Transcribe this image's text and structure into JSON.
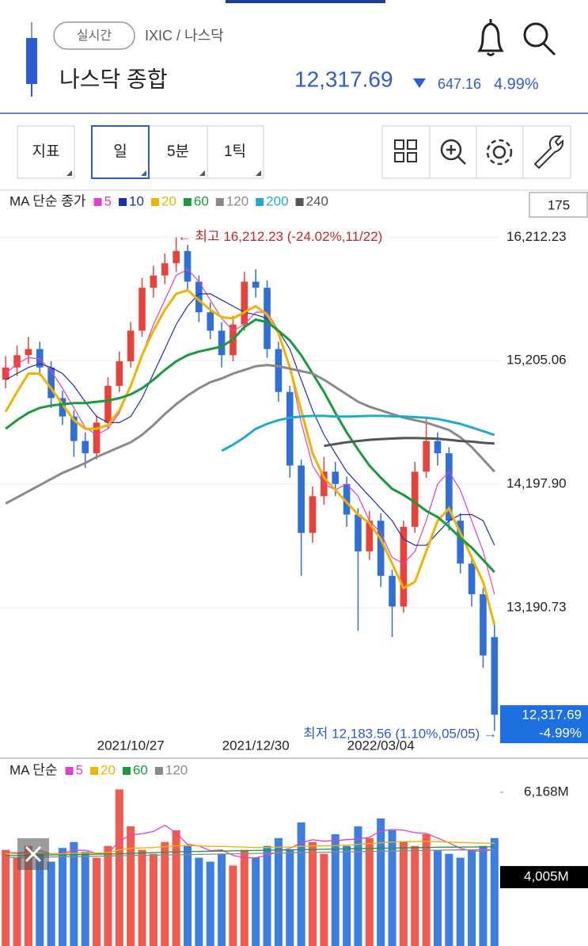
{
  "header": {
    "realtime": "실시간",
    "path": "IXIC / 나스닥",
    "title": "나스닥 종합",
    "price": "12,317.69",
    "change": "647.16",
    "change_pct": "4.99%"
  },
  "toolbar": {
    "buttons": [
      "지표",
      "일",
      "5분",
      "1틱"
    ],
    "count": "175"
  },
  "chart_data": [
    {
      "type": "candlestick",
      "legend_title": "MA 단순 종가",
      "categories": [
        null,
        null,
        null,
        null,
        null,
        null,
        null,
        null,
        null,
        null,
        null,
        "2021/10/27",
        null,
        null,
        null,
        null,
        null,
        null,
        null,
        null,
        null,
        null,
        "2021/12/30",
        null,
        null,
        null,
        null,
        null,
        null,
        null,
        null,
        null,
        null,
        "2022/03/04",
        null,
        null,
        null,
        null,
        null,
        null,
        null,
        null,
        null,
        null
      ],
      "open": [
        15050,
        15150,
        15250,
        15300,
        15150,
        14900,
        14750,
        14550,
        14450,
        14700,
        15000,
        15200,
        15450,
        15800,
        15900,
        16000,
        16100,
        15850,
        15600,
        15450,
        15250,
        15500,
        15850,
        15800,
        15300,
        14950,
        14350,
        13800,
        14100,
        14300,
        14200,
        13950,
        13650,
        13900,
        13450,
        13200,
        13850,
        14300,
        14550,
        14450,
        13900,
        13550,
        13300,
        12950
      ],
      "high": [
        15240,
        15330,
        15400,
        15360,
        15200,
        14960,
        14800,
        14620,
        14760,
        15070,
        15280,
        15520,
        15880,
        15980,
        16080,
        16212.23,
        16150,
        15900,
        15680,
        15520,
        15570,
        15930,
        15950,
        15860,
        15360,
        15000,
        14400,
        14180,
        14420,
        14380,
        14260,
        14000,
        13980,
        13960,
        13500,
        13900,
        14380,
        14750,
        14620,
        14500,
        13960,
        13620,
        13350,
        13050
      ],
      "low": [
        14980,
        15080,
        15180,
        15080,
        14820,
        14680,
        14420,
        14330,
        14400,
        14650,
        14950,
        15150,
        15400,
        15720,
        15830,
        15930,
        15780,
        15520,
        15380,
        15150,
        15200,
        15450,
        15720,
        15230,
        14870,
        14250,
        13450,
        13720,
        14030,
        14100,
        13850,
        13000,
        13580,
        13360,
        12950,
        13150,
        13800,
        14250,
        14350,
        13820,
        13470,
        13200,
        12700,
        12183.56
      ],
      "close": [
        15150,
        15250,
        15300,
        15150,
        14900,
        14750,
        14550,
        14450,
        14700,
        15000,
        15200,
        15450,
        15800,
        15900,
        16000,
        16100,
        15850,
        15600,
        15450,
        15250,
        15500,
        15850,
        15800,
        15300,
        14950,
        14350,
        13800,
        14100,
        14300,
        14200,
        13950,
        13650,
        13900,
        13450,
        13200,
        13850,
        14300,
        14550,
        14450,
        13900,
        13550,
        13300,
        12800,
        12317.69
      ],
      "up_color": "#e8423a",
      "down_color": "#2f6fd6",
      "series": [
        {
          "name": "5",
          "color": "#e040c8",
          "values": [
            15100,
            15180,
            15230,
            15220,
            15120,
            14980,
            14820,
            14660,
            14600,
            14650,
            14780,
            15000,
            15250,
            15500,
            15700,
            15900,
            15950,
            15850,
            15700,
            15550,
            15450,
            15500,
            15600,
            15600,
            15450,
            15150,
            14700,
            14350,
            14200,
            14150,
            14200,
            14100,
            13900,
            13800,
            13600,
            13550,
            13650,
            13900,
            14200,
            14300,
            14150,
            13900,
            13650,
            13300
          ]
        },
        {
          "name": "10",
          "color": "#1a2fb0",
          "values": [
            15050,
            15100,
            15150,
            15180,
            15150,
            15100,
            15000,
            14870,
            14750,
            14700,
            14700,
            14750,
            14900,
            15100,
            15300,
            15500,
            15650,
            15750,
            15750,
            15700,
            15650,
            15600,
            15580,
            15550,
            15450,
            15300,
            15050,
            14800,
            14600,
            14450,
            14300,
            14200,
            14100,
            14000,
            13900,
            13750,
            13700,
            13700,
            13800,
            13900,
            13950,
            13950,
            13900,
            13700
          ]
        },
        {
          "name": "20",
          "color": "#f0b400",
          "values": [
            14790,
            14950,
            15100,
            15100,
            14980,
            14850,
            14720,
            14650,
            14650,
            14680,
            14800,
            15000,
            15250,
            15450,
            15620,
            15750,
            15780,
            15700,
            15620,
            15560,
            15550,
            15600,
            15650,
            15580,
            15430,
            15150,
            14800,
            14450,
            14250,
            14150,
            14050,
            13950,
            13880,
            13750,
            13550,
            13350,
            13400,
            13650,
            13900,
            14000,
            13800,
            13600,
            13400,
            13050
          ]
        },
        {
          "name": "60",
          "color": "#1a9a3a",
          "values": [
            14650,
            14720,
            14780,
            14820,
            14840,
            14850,
            14860,
            14860,
            14870,
            14880,
            14900,
            14930,
            14980,
            15050,
            15130,
            15200,
            15250,
            15280,
            15300,
            15320,
            15380,
            15480,
            15540,
            15520,
            15450,
            15370,
            15250,
            15100,
            14950,
            14780,
            14620,
            14480,
            14350,
            14250,
            14160,
            14110,
            14050,
            13980,
            13930,
            13850,
            13760,
            13680,
            13580,
            13480
          ]
        },
        {
          "name": "120",
          "color": "#8a8a8a",
          "values": [
            14040,
            14090,
            14140,
            14190,
            14240,
            14290,
            14330,
            14370,
            14420,
            14460,
            14500,
            14540,
            14600,
            14680,
            14770,
            14850,
            14920,
            14980,
            15030,
            15060,
            15100,
            15130,
            15160,
            15170,
            15160,
            15140,
            15120,
            15100,
            15050,
            14990,
            14930,
            14870,
            14830,
            14800,
            14770,
            14740,
            14720,
            14700,
            14670,
            14640,
            14580,
            14500,
            14400,
            14300
          ]
        },
        {
          "name": "200",
          "color": "#22aacc",
          "values": [
            null,
            null,
            null,
            null,
            null,
            null,
            null,
            null,
            null,
            null,
            null,
            null,
            null,
            null,
            null,
            null,
            null,
            null,
            null,
            14470,
            14520,
            14580,
            14650,
            14690,
            14720,
            14740,
            14750,
            14755,
            14755,
            14750,
            14750,
            14752,
            14755,
            14755,
            14752,
            14750,
            14745,
            14740,
            14730,
            14710,
            14690,
            14660,
            14630,
            14600
          ]
        },
        {
          "name": "240",
          "color": "#555555",
          "values": [
            null,
            null,
            null,
            null,
            null,
            null,
            null,
            null,
            null,
            null,
            null,
            null,
            null,
            null,
            null,
            null,
            null,
            null,
            null,
            null,
            null,
            null,
            null,
            null,
            null,
            null,
            null,
            null,
            14510,
            14525,
            14540,
            14550,
            14560,
            14565,
            14570,
            14574,
            14574,
            14572,
            14568,
            14560,
            14550,
            14545,
            14535,
            14530
          ]
        }
      ],
      "ylim": [
        12150,
        16370
      ],
      "yticks": [
        {
          "value": 16212.23,
          "label": "16,212.23"
        },
        {
          "value": 15205.06,
          "label": "15,205.06"
        },
        {
          "value": 14197.9,
          "label": "14,197.90"
        },
        {
          "value": 13190.73,
          "label": "13,190.73"
        }
      ],
      "grid": true,
      "high_label": "← 최고 16,212.23 (-24.02%,11/22)",
      "low_label": "최저 12,183.56 (1.10%,05/05) →",
      "last_price_label": "12,317.69",
      "last_change_label": "-4.99%"
    },
    {
      "type": "bar",
      "legend_title": "MA 단순",
      "values": [
        4700,
        4500,
        4800,
        4600,
        4400,
        4750,
        4900,
        4650,
        4500,
        4800,
        6240,
        5300,
        4700,
        4600,
        4900,
        5200,
        4800,
        4500,
        4400,
        4600,
        4300,
        4700,
        4500,
        4800,
        5000,
        4700,
        5400,
        4900,
        4600,
        5100,
        4800,
        5300,
        5000,
        5500,
        5200,
        4900,
        4800,
        5100,
        4700,
        4600,
        4500,
        4700,
        4800,
        5000
      ],
      "series": [
        {
          "name": "5",
          "color": "#e040c8",
          "values": [
            4650,
            4620,
            4650,
            4680,
            4600,
            4610,
            4690,
            4690,
            4610,
            4610,
            4920,
            5080,
            5110,
            5170,
            5330,
            5130,
            4840,
            4800,
            4680,
            4700,
            4560,
            4500,
            4500,
            4560,
            4660,
            4740,
            4880,
            4960,
            4920,
            4940,
            4960,
            4980,
            5020,
            5180,
            5220,
            5200,
            5140,
            5120,
            5000,
            4880,
            4740,
            4680,
            4660,
            4720
          ]
        },
        {
          "name": "20",
          "color": "#f0b400",
          "values": [
            4600,
            4600,
            4610,
            4610,
            4600,
            4600,
            4610,
            4620,
            4620,
            4630,
            4700,
            4740,
            4750,
            4760,
            4780,
            4800,
            4810,
            4800,
            4790,
            4790,
            4780,
            4770,
            4760,
            4760,
            4770,
            4770,
            4790,
            4800,
            4800,
            4810,
            4820,
            4840,
            4860,
            4880,
            4900,
            4910,
            4910,
            4920,
            4910,
            4900,
            4890,
            4880,
            4870,
            4870
          ]
        },
        {
          "name": "60",
          "color": "#1a9a3a",
          "values": [
            4550,
            4555,
            4560,
            4565,
            4570,
            4575,
            4580,
            4585,
            4590,
            4595,
            4600,
            4610,
            4620,
            4630,
            4640,
            4650,
            4655,
            4660,
            4665,
            4670,
            4675,
            4680,
            4685,
            4690,
            4695,
            4700,
            4705,
            4710,
            4715,
            4720,
            4725,
            4730,
            4735,
            4740,
            4745,
            4750,
            4755,
            4760,
            4765,
            4770,
            4770,
            4775,
            4775,
            4780
          ]
        },
        {
          "name": "120",
          "color": "#8a8a8a",
          "values": [
            4500,
            4505,
            4510,
            4515,
            4520,
            4525,
            4530,
            4535,
            4540,
            4545,
            4550,
            4555,
            4560,
            4565,
            4570,
            4575,
            4580,
            4585,
            4590,
            4595,
            4600,
            4605,
            4610,
            4615,
            4620,
            4625,
            4630,
            4635,
            4640,
            4645,
            4650,
            4655,
            4660,
            4665,
            4670,
            4675,
            4680,
            4685,
            4690,
            4695,
            4700,
            4700,
            4705,
            4705
          ]
        }
      ],
      "ylim": [
        2250,
        6450
      ],
      "yticks": [
        {
          "value": 6168,
          "label": "6,168M"
        },
        {
          "value": 4005,
          "label": "4,005M"
        }
      ]
    }
  ]
}
